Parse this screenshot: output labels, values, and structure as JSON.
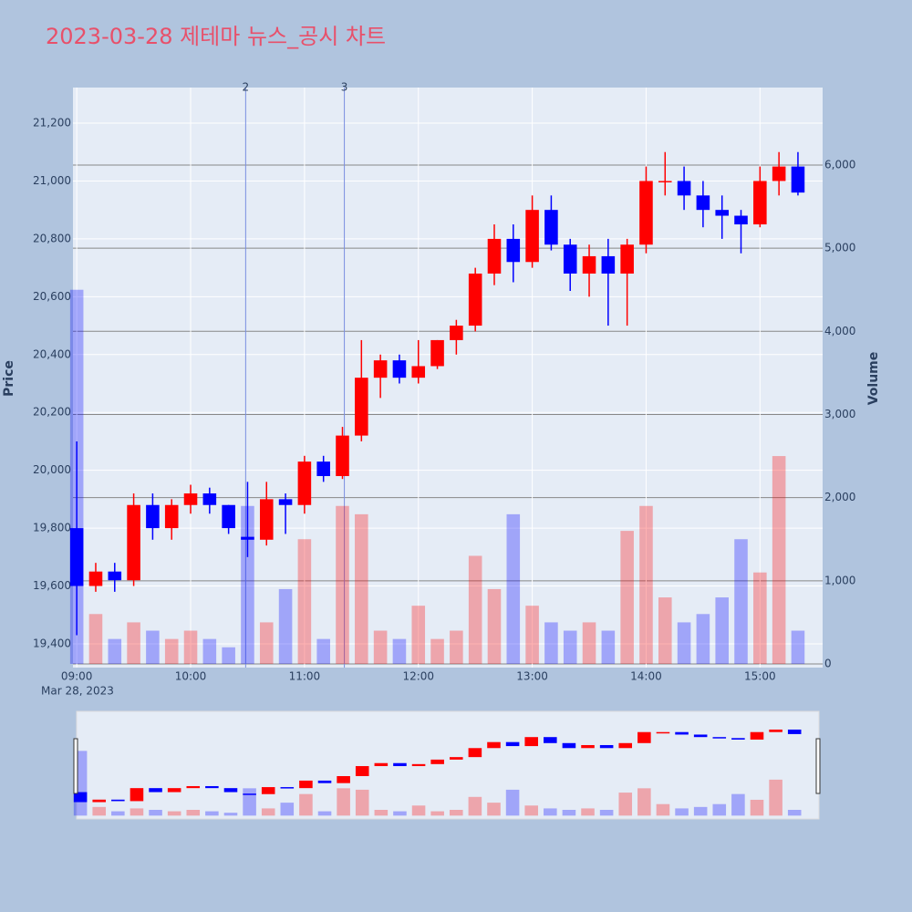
{
  "chart_data": {
    "type": "candlestick",
    "title": "2023-03-28 제테마 뉴스_공시 차트",
    "y_label": "Price",
    "y2_label": "Volume",
    "x_date_label": "Mar 28, 2023",
    "x": [
      "09:00",
      "09:10",
      "09:20",
      "09:30",
      "09:40",
      "09:50",
      "10:00",
      "10:10",
      "10:20",
      "10:30",
      "10:40",
      "10:50",
      "11:00",
      "11:10",
      "11:20",
      "11:30",
      "11:40",
      "11:50",
      "12:00",
      "12:10",
      "12:20",
      "12:30",
      "12:40",
      "12:50",
      "13:00",
      "13:10",
      "13:20",
      "13:30",
      "13:40",
      "13:50",
      "14:00",
      "14:10",
      "14:20",
      "14:30",
      "14:40",
      "14:50",
      "15:00",
      "15:10",
      "15:20"
    ],
    "open": [
      19800,
      19600,
      19650,
      19620,
      19880,
      19800,
      19880,
      19920,
      19880,
      19770,
      19760,
      19900,
      19880,
      20030,
      19980,
      20120,
      20320,
      20380,
      20320,
      20360,
      20450,
      20500,
      20680,
      20800,
      20720,
      20900,
      20780,
      20680,
      20740,
      20680,
      20780,
      21000,
      21000,
      20950,
      20900,
      20880,
      20850,
      21000,
      21050
    ],
    "high": [
      20100,
      19680,
      19680,
      19920,
      19920,
      19900,
      19950,
      19940,
      19880,
      19960,
      19960,
      19920,
      20050,
      20050,
      20150,
      20450,
      20400,
      20400,
      20450,
      20450,
      20520,
      20700,
      20850,
      20850,
      20950,
      20950,
      20800,
      20780,
      20800,
      20800,
      21050,
      21100,
      21050,
      21000,
      20950,
      20900,
      21050,
      21100,
      21100
    ],
    "low": [
      19430,
      19580,
      19580,
      19600,
      19760,
      19760,
      19850,
      19850,
      19780,
      19700,
      19740,
      19780,
      19850,
      19960,
      19970,
      20100,
      20250,
      20300,
      20300,
      20350,
      20400,
      20480,
      20640,
      20650,
      20700,
      20760,
      20620,
      20600,
      20500,
      20500,
      20750,
      20950,
      20900,
      20840,
      20800,
      20750,
      20840,
      20950,
      20950
    ],
    "close": [
      19600,
      19650,
      19620,
      19880,
      19800,
      19880,
      19920,
      19880,
      19800,
      19760,
      19900,
      19880,
      20030,
      19980,
      20120,
      20320,
      20380,
      20320,
      20360,
      20450,
      20500,
      20680,
      20800,
      20720,
      20900,
      20780,
      20680,
      20740,
      20680,
      20780,
      21000,
      21000,
      20950,
      20900,
      20880,
      20850,
      21000,
      21050,
      20960
    ],
    "volume": [
      4500,
      600,
      300,
      500,
      400,
      300,
      400,
      300,
      200,
      1900,
      500,
      900,
      1500,
      300,
      1900,
      1800,
      400,
      300,
      700,
      300,
      400,
      1300,
      900,
      1800,
      700,
      500,
      400,
      500,
      400,
      1600,
      1900,
      800,
      500,
      600,
      800,
      1500,
      1100,
      2500,
      400
    ],
    "colors": {
      "up": "#ff0000",
      "down": "#0000ff"
    },
    "annotations": [
      {
        "x": "10:29",
        "text": "2"
      },
      {
        "x": "11:21",
        "text": "3"
      }
    ],
    "xlim": [
      "08:58",
      "15:33"
    ],
    "xticks": [
      "09:00",
      "10:00",
      "11:00",
      "12:00",
      "13:00",
      "14:00",
      "15:00"
    ],
    "ylim": [
      19318,
      21323
    ],
    "yticks": [
      {
        "value": 19400,
        "label": "19,400"
      },
      {
        "value": 19600,
        "label": "19,600"
      },
      {
        "value": 19800,
        "label": "19,800"
      },
      {
        "value": 20000,
        "label": "20,000"
      },
      {
        "value": 20200,
        "label": "20,200"
      },
      {
        "value": 20400,
        "label": "20,400"
      },
      {
        "value": 20600,
        "label": "20,600"
      },
      {
        "value": 20800,
        "label": "20,800"
      },
      {
        "value": 21000,
        "label": "21,000"
      },
      {
        "value": 21200,
        "label": "21,200"
      }
    ],
    "y2lim": [
      -44,
      6932
    ],
    "y2ticks": [
      0,
      {
        "value": 1000,
        "label": "1,000"
      },
      {
        "value": 2000,
        "label": "2,000"
      },
      {
        "value": 3000,
        "label": "3,000"
      },
      {
        "value": 4000,
        "label": "4,000"
      },
      {
        "value": 5000,
        "label": "5,000"
      },
      {
        "value": 6000,
        "label": "6,000"
      }
    ],
    "grid": true
  }
}
